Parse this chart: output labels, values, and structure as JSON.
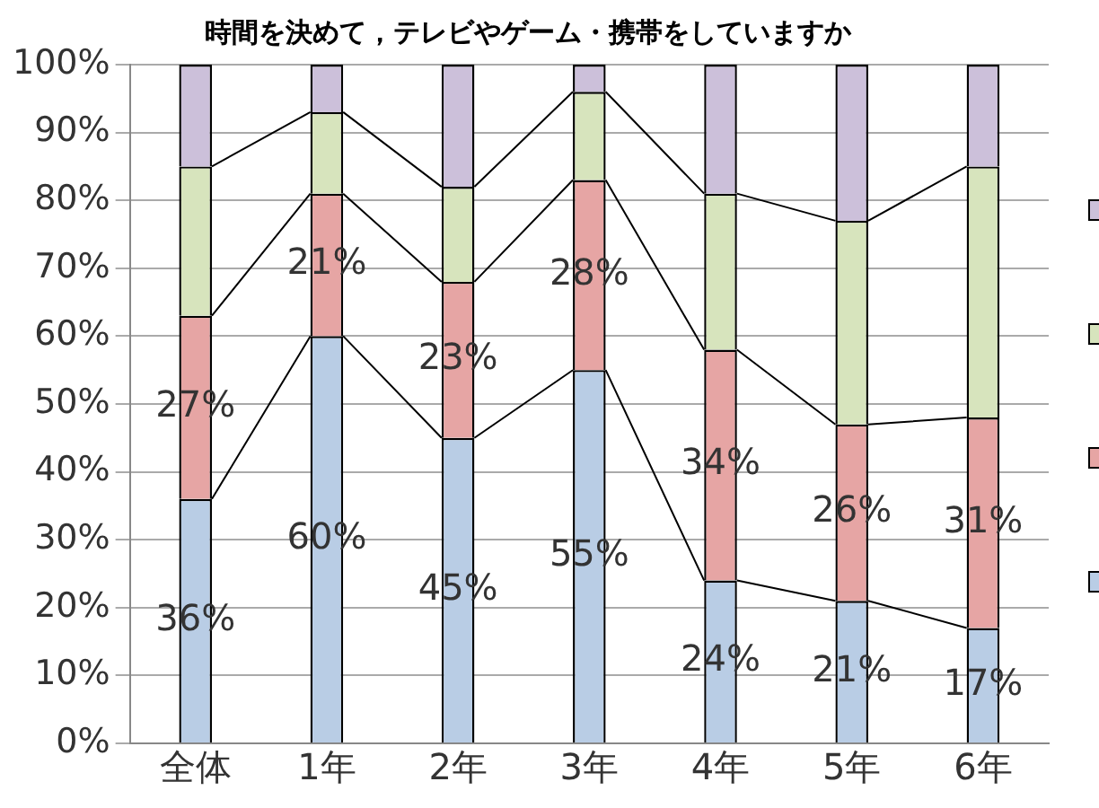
{
  "chart_data": {
    "type": "bar",
    "stacked": true,
    "title": "時間を決めて，テレビやゲーム・携帯をしていますか",
    "categories": [
      "全体",
      "1年",
      "2年",
      "3年",
      "4年",
      "5年",
      "6年"
    ],
    "series": [
      {
        "color": "#b9cde5",
        "values": [
          36,
          60,
          45,
          55,
          24,
          21,
          17
        ],
        "value_labels": [
          "36%",
          "60%",
          "45%",
          "55%",
          "24%",
          "21%",
          "17%"
        ]
      },
      {
        "color": "#e6a5a4",
        "values": [
          27,
          21,
          23,
          28,
          34,
          26,
          31
        ],
        "value_labels": [
          "27%",
          "21%",
          "23%",
          "28%",
          "34%",
          "26%",
          "31%"
        ]
      },
      {
        "color": "#d7e4bd",
        "values": [
          22,
          12,
          14,
          13,
          23,
          30,
          37
        ]
      },
      {
        "color": "#ccc0da",
        "values": [
          15,
          7,
          18,
          4,
          19,
          23,
          15
        ]
      }
    ],
    "ylim": [
      0,
      100
    ],
    "yticks": [
      {
        "value": 0,
        "label": "0%"
      },
      {
        "value": 10,
        "label": "10%"
      },
      {
        "value": 20,
        "label": "20%"
      },
      {
        "value": 30,
        "label": "30%"
      },
      {
        "value": 40,
        "label": "40%"
      },
      {
        "value": 50,
        "label": "50%"
      },
      {
        "value": 60,
        "label": "60%"
      },
      {
        "value": 70,
        "label": "70%"
      },
      {
        "value": 80,
        "label": "80%"
      },
      {
        "value": 90,
        "label": "90%"
      },
      {
        "value": 100,
        "label": "100%"
      }
    ],
    "grid": "y"
  }
}
